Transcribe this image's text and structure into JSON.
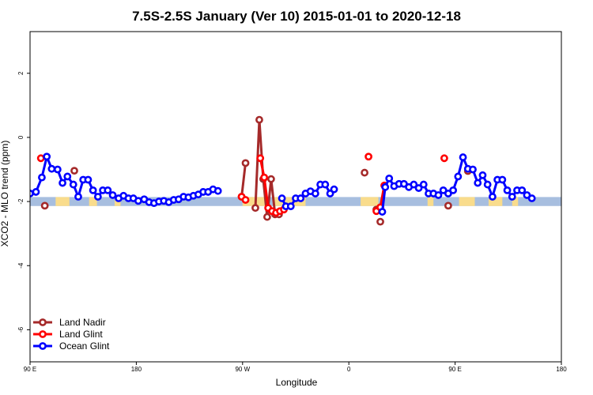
{
  "chart_data": {
    "type": "line",
    "title": "7.5S-2.5S January (Ver 10)   2015-01-01 to 2020-12-18",
    "xlabel": "Longitude",
    "ylabel": "XCO2 - MLO trend (ppm)",
    "xlim": [
      -90,
      180
    ],
    "ylim": [
      -7,
      3.3
    ],
    "x_ticks": [
      {
        "value": -90,
        "label": "90 E"
      },
      {
        "value": -36,
        "label": "180"
      },
      {
        "value": 18,
        "label": "90 W"
      },
      {
        "value": 72,
        "label": "0"
      },
      {
        "value": 126,
        "label": "90 E"
      },
      {
        "value": 180,
        "label": "180"
      }
    ],
    "y_ticks": [
      {
        "value": -6,
        "label": "-6"
      },
      {
        "value": -4,
        "label": "-4"
      },
      {
        "value": -2,
        "label": "-2"
      },
      {
        "value": 0,
        "label": "0"
      },
      {
        "value": 2,
        "label": "2"
      }
    ],
    "grid": false,
    "legend_position": "bottom-left",
    "colors": {
      "land_nadir": "#a52a2a",
      "land_glint": "#ff0000",
      "ocean_glint": "#0000ff",
      "ocean_band": "#a7bedf",
      "land_band": "#f9dc8c"
    },
    "background_band": {
      "y_range": [
        -2.14,
        -1.86
      ],
      "land_segments": [
        [
          -77,
          -70
        ],
        [
          -60,
          -56
        ],
        [
          -47,
          -44
        ],
        [
          18,
          30
        ],
        [
          34,
          50
        ],
        [
          78,
          87
        ],
        [
          112,
          115
        ],
        [
          128,
          136
        ],
        [
          143,
          150
        ],
        [
          155,
          158
        ]
      ]
    },
    "series": [
      {
        "name": "Land Nadir",
        "segments": [
          [
            [
              17.5,
              -1.85
            ],
            [
              19.5,
              -0.8
            ]
          ],
          [
            [
              24.5,
              -2.2
            ],
            [
              26.5,
              0.55
            ],
            [
              28.5,
              -1.3
            ],
            [
              30.5,
              -2.48
            ],
            [
              32.5,
              -1.3
            ],
            [
              34.5,
              -2.4
            ],
            [
              36.5,
              -2.4
            ]
          ]
        ],
        "points": [
          [
            -82.5,
            -2.13
          ],
          [
            -67.5,
            -1.04
          ],
          [
            17.5,
            -1.85
          ],
          [
            19.5,
            -0.8
          ],
          [
            24.5,
            -2.2
          ],
          [
            26.5,
            0.55
          ],
          [
            28.5,
            -1.3
          ],
          [
            30.5,
            -2.48
          ],
          [
            32.5,
            -1.3
          ],
          [
            34.5,
            -2.4
          ],
          [
            36.5,
            -2.4
          ],
          [
            80,
            -1.1
          ],
          [
            86,
            -2.25
          ],
          [
            88,
            -2.63
          ],
          [
            122.5,
            -2.13
          ],
          [
            132.5,
            -1.05
          ]
        ]
      },
      {
        "name": "Land Glint",
        "segments": [
          [
            [
              17.5,
              -1.85
            ],
            [
              19.5,
              -1.95
            ]
          ],
          [
            [
              27,
              -0.65
            ],
            [
              29,
              -1.25
            ],
            [
              31,
              -2.2
            ],
            [
              33,
              -2.3
            ],
            [
              35,
              -2.35
            ],
            [
              37,
              -2.3
            ],
            [
              39,
              -2.25
            ]
          ],
          [
            [
              86,
              -2.3
            ],
            [
              88,
              -2.18
            ],
            [
              90,
              -1.5
            ]
          ]
        ],
        "points": [
          [
            -84.5,
            -0.65
          ],
          [
            17.5,
            -1.85
          ],
          [
            19.5,
            -1.95
          ],
          [
            27,
            -0.65
          ],
          [
            29,
            -1.25
          ],
          [
            31,
            -2.2
          ],
          [
            33,
            -2.3
          ],
          [
            35,
            -2.35
          ],
          [
            37,
            -2.3
          ],
          [
            39,
            -2.25
          ],
          [
            82,
            -0.6
          ],
          [
            86,
            -2.3
          ],
          [
            88,
            -2.18
          ],
          [
            90,
            -1.5
          ],
          [
            120.5,
            -0.65
          ]
        ]
      },
      {
        "name": "Ocean Glint",
        "segments": [
          [
            [
              -90,
              -1.75
            ],
            [
              -87,
              -1.7
            ],
            [
              -84,
              -1.25
            ],
            [
              -81.5,
              -0.6
            ],
            [
              -79,
              -0.98
            ],
            [
              -76,
              -1.0
            ],
            [
              -73.5,
              -1.42
            ],
            [
              -71,
              -1.22
            ],
            [
              -68,
              -1.47
            ],
            [
              -65.5,
              -1.85
            ],
            [
              -63,
              -1.32
            ],
            [
              -60.5,
              -1.32
            ],
            [
              -58,
              -1.65
            ],
            [
              -55.5,
              -1.85
            ],
            [
              -53,
              -1.65
            ],
            [
              -50.5,
              -1.65
            ],
            [
              -48,
              -1.8
            ],
            [
              -45,
              -1.9
            ],
            [
              -42.5,
              -1.82
            ],
            [
              -40,
              -1.9
            ],
            [
              -37.5,
              -1.9
            ],
            [
              -35,
              -1.98
            ],
            [
              -32,
              -1.93
            ],
            [
              -29.5,
              -2.02
            ],
            [
              -27,
              -2.05
            ],
            [
              -24.5,
              -2.0
            ],
            [
              -22,
              -1.98
            ],
            [
              -19.5,
              -2.02
            ],
            [
              -17,
              -1.95
            ],
            [
              -14.5,
              -1.93
            ],
            [
              -12,
              -1.85
            ],
            [
              -9.5,
              -1.87
            ],
            [
              -7,
              -1.82
            ],
            [
              -4.5,
              -1.78
            ],
            [
              -2,
              -1.7
            ],
            [
              0.5,
              -1.7
            ],
            [
              3,
              -1.62
            ],
            [
              5.5,
              -1.67
            ]
          ],
          [
            [
              38,
              -1.9
            ],
            [
              40,
              -2.15
            ],
            [
              42.5,
              -2.15
            ],
            [
              45,
              -1.9
            ],
            [
              47.5,
              -1.9
            ],
            [
              50,
              -1.75
            ],
            [
              52.5,
              -1.68
            ],
            [
              55,
              -1.75
            ],
            [
              57.5,
              -1.47
            ],
            [
              60,
              -1.47
            ],
            [
              62.5,
              -1.75
            ],
            [
              64.5,
              -1.62
            ]
          ],
          [
            [
              89,
              -2.32
            ],
            [
              90.5,
              -1.55
            ],
            [
              92.5,
              -1.28
            ],
            [
              95,
              -1.52
            ],
            [
              97.5,
              -1.45
            ],
            [
              100,
              -1.45
            ],
            [
              102.5,
              -1.55
            ],
            [
              105,
              -1.47
            ],
            [
              107.5,
              -1.58
            ],
            [
              110,
              -1.47
            ],
            [
              112.5,
              -1.75
            ],
            [
              115,
              -1.75
            ],
            [
              117.5,
              -1.8
            ],
            [
              120,
              -1.65
            ],
            [
              122.5,
              -1.75
            ],
            [
              125,
              -1.65
            ],
            [
              127.5,
              -1.22
            ],
            [
              130,
              -0.62
            ],
            [
              132.5,
              -0.98
            ],
            [
              135,
              -1.0
            ],
            [
              137.5,
              -1.42
            ],
            [
              140,
              -1.18
            ],
            [
              142.5,
              -1.47
            ],
            [
              145,
              -1.85
            ],
            [
              147.5,
              -1.32
            ],
            [
              150,
              -1.32
            ],
            [
              152.5,
              -1.65
            ],
            [
              155,
              -1.85
            ],
            [
              157.5,
              -1.65
            ],
            [
              160,
              -1.65
            ],
            [
              162.5,
              -1.8
            ],
            [
              165,
              -1.9
            ]
          ]
        ],
        "points": [
          [
            -90,
            -1.75
          ],
          [
            -87,
            -1.7
          ],
          [
            -84,
            -1.25
          ],
          [
            -81.5,
            -0.6
          ],
          [
            -79,
            -0.98
          ],
          [
            -76,
            -1.0
          ],
          [
            -73.5,
            -1.42
          ],
          [
            -71,
            -1.22
          ],
          [
            -68,
            -1.47
          ],
          [
            -65.5,
            -1.85
          ],
          [
            -63,
            -1.32
          ],
          [
            -60.5,
            -1.32
          ],
          [
            -58,
            -1.65
          ],
          [
            -55.5,
            -1.85
          ],
          [
            -53,
            -1.65
          ],
          [
            -50.5,
            -1.65
          ],
          [
            -48,
            -1.8
          ],
          [
            -45,
            -1.9
          ],
          [
            -42.5,
            -1.82
          ],
          [
            -40,
            -1.9
          ],
          [
            -37.5,
            -1.9
          ],
          [
            -35,
            -1.98
          ],
          [
            -32,
            -1.93
          ],
          [
            -29.5,
            -2.02
          ],
          [
            -27,
            -2.05
          ],
          [
            -24.5,
            -2.0
          ],
          [
            -22,
            -1.98
          ],
          [
            -19.5,
            -2.02
          ],
          [
            -17,
            -1.95
          ],
          [
            -14.5,
            -1.93
          ],
          [
            -12,
            -1.85
          ],
          [
            -9.5,
            -1.87
          ],
          [
            -7,
            -1.82
          ],
          [
            -4.5,
            -1.78
          ],
          [
            -2,
            -1.7
          ],
          [
            0.5,
            -1.7
          ],
          [
            3,
            -1.62
          ],
          [
            5.5,
            -1.67
          ],
          [
            38,
            -1.9
          ],
          [
            40,
            -2.15
          ],
          [
            42.5,
            -2.15
          ],
          [
            45,
            -1.9
          ],
          [
            47.5,
            -1.9
          ],
          [
            50,
            -1.75
          ],
          [
            52.5,
            -1.68
          ],
          [
            55,
            -1.75
          ],
          [
            57.5,
            -1.47
          ],
          [
            60,
            -1.47
          ],
          [
            62.5,
            -1.75
          ],
          [
            64.5,
            -1.62
          ],
          [
            89,
            -2.32
          ],
          [
            90.5,
            -1.55
          ],
          [
            92.5,
            -1.28
          ],
          [
            95,
            -1.52
          ],
          [
            97.5,
            -1.45
          ],
          [
            100,
            -1.45
          ],
          [
            102.5,
            -1.55
          ],
          [
            105,
            -1.47
          ],
          [
            107.5,
            -1.58
          ],
          [
            110,
            -1.47
          ],
          [
            112.5,
            -1.75
          ],
          [
            115,
            -1.75
          ],
          [
            117.5,
            -1.8
          ],
          [
            120,
            -1.65
          ],
          [
            122.5,
            -1.75
          ],
          [
            125,
            -1.65
          ],
          [
            127.5,
            -1.22
          ],
          [
            130,
            -0.62
          ],
          [
            132.5,
            -0.98
          ],
          [
            135,
            -1.0
          ],
          [
            137.5,
            -1.42
          ],
          [
            140,
            -1.18
          ],
          [
            142.5,
            -1.47
          ],
          [
            145,
            -1.85
          ],
          [
            147.5,
            -1.32
          ],
          [
            150,
            -1.32
          ],
          [
            152.5,
            -1.65
          ],
          [
            155,
            -1.85
          ],
          [
            157.5,
            -1.65
          ],
          [
            160,
            -1.65
          ],
          [
            162.5,
            -1.8
          ],
          [
            165,
            -1.9
          ]
        ]
      }
    ]
  }
}
